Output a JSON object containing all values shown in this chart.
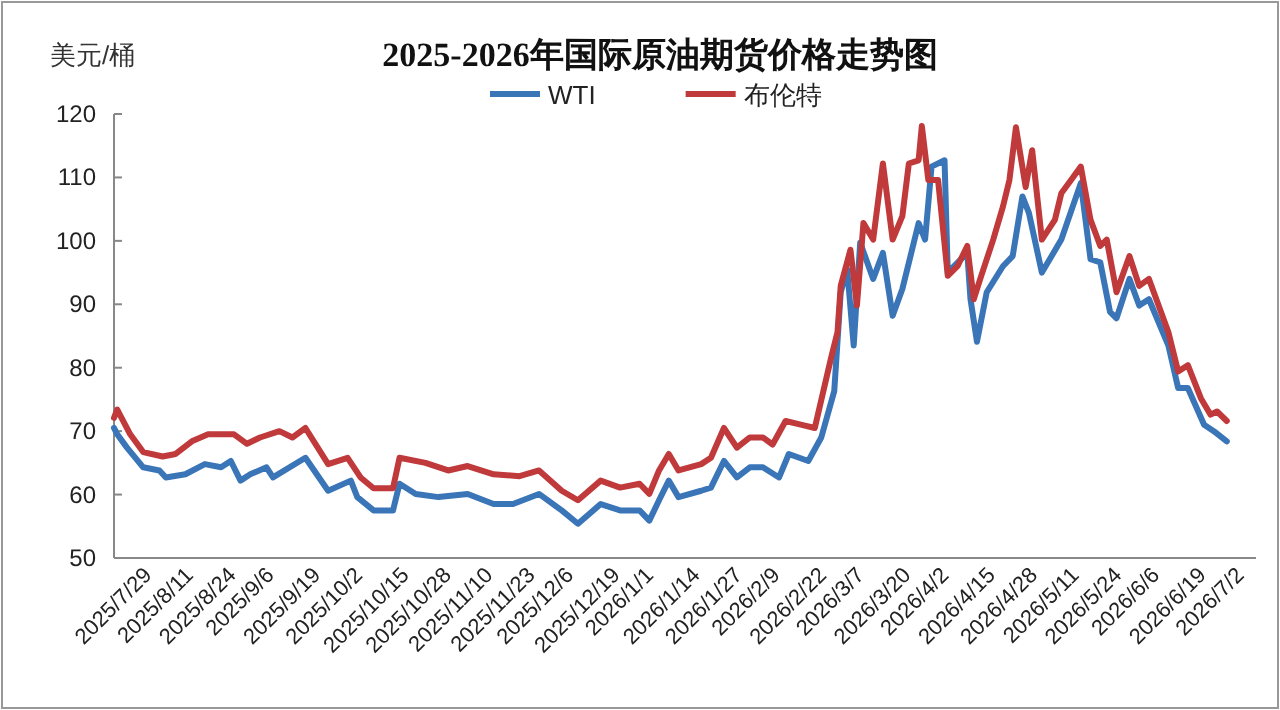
{
  "chart_data": {
    "type": "line",
    "title": "2025-2026年国际原油期货价格走势图",
    "ylabel": "美元/桶",
    "xlim": [
      "2025-07-29",
      "2026-07-16"
    ],
    "ylim": [
      50,
      120
    ],
    "yticks": [
      50,
      60,
      70,
      80,
      90,
      100,
      110,
      120
    ],
    "xticks": [
      {
        "value": "2025-07-29",
        "label": "2025/7/29"
      },
      {
        "value": "2025-08-11",
        "label": "2025/8/11"
      },
      {
        "value": "2025-08-24",
        "label": "2025/8/24"
      },
      {
        "value": "2025-09-06",
        "label": "2025/9/6"
      },
      {
        "value": "2025-09-19",
        "label": "2025/9/19"
      },
      {
        "value": "2025-10-02",
        "label": "2025/10/2"
      },
      {
        "value": "2025-10-15",
        "label": "2025/10/15"
      },
      {
        "value": "2025-10-28",
        "label": "2025/10/28"
      },
      {
        "value": "2025-11-10",
        "label": "2025/11/10"
      },
      {
        "value": "2025-11-23",
        "label": "2025/11/23"
      },
      {
        "value": "2025-12-06",
        "label": "2025/12/6"
      },
      {
        "value": "2025-12-19",
        "label": "2025/12/19"
      },
      {
        "value": "2026-01-01",
        "label": "2026/1/1"
      },
      {
        "value": "2026-01-14",
        "label": "2026/1/14"
      },
      {
        "value": "2026-01-27",
        "label": "2026/1/27"
      },
      {
        "value": "2026-02-09",
        "label": "2026/2/9"
      },
      {
        "value": "2026-02-22",
        "label": "2026/2/22"
      },
      {
        "value": "2026-03-07",
        "label": "2026/3/7"
      },
      {
        "value": "2026-03-20",
        "label": "2026/3/20"
      },
      {
        "value": "2026-04-02",
        "label": "2026/4/2"
      },
      {
        "value": "2026-04-15",
        "label": "2026/4/15"
      },
      {
        "value": "2026-04-28",
        "label": "2026/4/28"
      },
      {
        "value": "2026-05-11",
        "label": "2026/5/11"
      },
      {
        "value": "2026-05-24",
        "label": "2026/5/24"
      },
      {
        "value": "2026-06-06",
        "label": "2026/6/6"
      },
      {
        "value": "2026-06-19",
        "label": "2026/6/19"
      },
      {
        "value": "2026-07-02",
        "label": "2026/7/2"
      }
    ],
    "legend": "top",
    "grid": false,
    "marker": "none",
    "line_style": "solid",
    "series": [
      {
        "name": "WTI",
        "color": "#3a75b8",
        "x": [
          "2025-07-29",
          "2025-07-30",
          "2025-08-02",
          "2025-08-07",
          "2025-08-12",
          "2025-08-14",
          "2025-08-20",
          "2025-08-26",
          "2025-08-31",
          "2025-09-03",
          "2025-09-06",
          "2025-09-09",
          "2025-09-14",
          "2025-09-16",
          "2025-09-26",
          "2025-10-03",
          "2025-10-10",
          "2025-10-12",
          "2025-10-17",
          "2025-10-23",
          "2025-10-25",
          "2025-10-30",
          "2025-11-06",
          "2025-11-15",
          "2025-11-23",
          "2025-11-29",
          "2025-12-07",
          "2025-12-14",
          "2025-12-19",
          "2025-12-26",
          "2026-01-01",
          "2026-01-07",
          "2026-01-10",
          "2026-01-13",
          "2026-01-16",
          "2026-01-19",
          "2026-01-26",
          "2026-01-29",
          "2026-02-02",
          "2026-02-06",
          "2026-02-10",
          "2026-02-14",
          "2026-02-19",
          "2026-02-22",
          "2026-02-28",
          "2026-03-04",
          "2026-03-08",
          "2026-03-10",
          "2026-03-12",
          "2026-03-14",
          "2026-03-16",
          "2026-03-20",
          "2026-03-23",
          "2026-03-26",
          "2026-03-29",
          "2026-04-03",
          "2026-04-05",
          "2026-04-07",
          "2026-04-11",
          "2026-04-12",
          "2026-04-16",
          "2026-04-18",
          "2026-04-19",
          "2026-04-21",
          "2026-04-24",
          "2026-04-29",
          "2026-05-02",
          "2026-05-05",
          "2026-05-07",
          "2026-05-11",
          "2026-05-17",
          "2026-05-23",
          "2026-05-26",
          "2026-05-29",
          "2026-06-01",
          "2026-06-03",
          "2026-06-07",
          "2026-06-10",
          "2026-06-13",
          "2026-06-19",
          "2026-06-22",
          "2026-06-25",
          "2026-06-30",
          "2026-07-03",
          "2026-07-07"
        ],
        "values": [
          70.5,
          69.5,
          67.4,
          64.3,
          63.8,
          62.7,
          63.2,
          64.8,
          64.3,
          65.3,
          62.2,
          63.2,
          64.3,
          62.7,
          65.8,
          60.6,
          62.2,
          59.6,
          57.5,
          57.5,
          61.7,
          60.1,
          59.6,
          60.1,
          58.5,
          58.5,
          60.1,
          57.5,
          55.4,
          58.5,
          57.5,
          57.5,
          55.9,
          59.1,
          62.2,
          59.6,
          60.6,
          61.1,
          65.3,
          62.7,
          64.3,
          64.3,
          62.7,
          66.4,
          65.3,
          69,
          76.3,
          91.9,
          95.5,
          83.5,
          99.7,
          94,
          98.1,
          88.2,
          92.4,
          102.8,
          100.2,
          111.7,
          112.7,
          95,
          97.1,
          98.1,
          90.8,
          84.1,
          91.9,
          96,
          97.6,
          107,
          104.4,
          95,
          100.2,
          109.1,
          97.1,
          96.6,
          88.8,
          87.8,
          94,
          89.8,
          90.8,
          83.5,
          76.8,
          76.8,
          71,
          70,
          68.4
        ]
      },
      {
        "name": "布伦特",
        "color": "#c0393b",
        "x": [
          "2025-07-29",
          "2025-07-30",
          "2025-08-03",
          "2025-08-07",
          "2025-08-13",
          "2025-08-17",
          "2025-08-22",
          "2025-08-27",
          "2025-09-04",
          "2025-09-08",
          "2025-09-12",
          "2025-09-18",
          "2025-09-22",
          "2025-09-26",
          "2025-10-03",
          "2025-10-09",
          "2025-10-13",
          "2025-10-17",
          "2025-10-23",
          "2025-10-25",
          "2025-11-02",
          "2025-11-09",
          "2025-11-15",
          "2025-11-23",
          "2025-12-01",
          "2025-12-07",
          "2025-12-14",
          "2025-12-19",
          "2025-12-26",
          "2026-01-01",
          "2026-01-07",
          "2026-01-10",
          "2026-01-13",
          "2026-01-16",
          "2026-01-19",
          "2026-01-26",
          "2026-01-29",
          "2026-02-02",
          "2026-02-06",
          "2026-02-10",
          "2026-02-14",
          "2026-02-17",
          "2026-02-21",
          "2026-02-26",
          "2026-03-02",
          "2026-03-07",
          "2026-03-09",
          "2026-03-10",
          "2026-03-13",
          "2026-03-15",
          "2026-03-17",
          "2026-03-20",
          "2026-03-23",
          "2026-03-26",
          "2026-03-29",
          "2026-03-31",
          "2026-04-03",
          "2026-04-04",
          "2026-04-06",
          "2026-04-09",
          "2026-04-12",
          "2026-04-15",
          "2026-04-18",
          "2026-04-20",
          "2026-04-22",
          "2026-04-26",
          "2026-04-29",
          "2026-05-01",
          "2026-05-03",
          "2026-05-06",
          "2026-05-08",
          "2026-05-11",
          "2026-05-15",
          "2026-05-17",
          "2026-05-20",
          "2026-05-23",
          "2026-05-26",
          "2026-05-29",
          "2026-05-31",
          "2026-06-03",
          "2026-06-07",
          "2026-06-10",
          "2026-06-13",
          "2026-06-19",
          "2026-06-22",
          "2026-06-25",
          "2026-06-29",
          "2026-07-02",
          "2026-07-04",
          "2026-07-07"
        ],
        "values": [
          72.1,
          73.4,
          69.5,
          66.7,
          66,
          66.4,
          68.4,
          69.5,
          69.5,
          68,
          69,
          70,
          69,
          70.5,
          64.8,
          65.8,
          62.7,
          61,
          61,
          65.8,
          65,
          63.8,
          64.5,
          63.2,
          62.9,
          63.8,
          60.6,
          59.1,
          62.2,
          61.1,
          61.7,
          60.1,
          63.8,
          66.4,
          63.8,
          64.8,
          65.8,
          70.5,
          67.4,
          69,
          69,
          67.9,
          71.6,
          71,
          70.5,
          81.5,
          85.6,
          92.9,
          98.6,
          89.8,
          102.8,
          100.2,
          112.2,
          100.2,
          103.9,
          112.2,
          112.7,
          118.1,
          109.6,
          109.6,
          94.5,
          96,
          99.2,
          90.8,
          94,
          100.2,
          105.4,
          109.6,
          117.9,
          108.5,
          114.3,
          100.2,
          103.3,
          107.5,
          109.6,
          111.7,
          103.3,
          99.2,
          100.2,
          91.9,
          97.6,
          92.9,
          94,
          85.6,
          79.4,
          80.4,
          75.2,
          72.6,
          73.1,
          71.6
        ]
      }
    ]
  }
}
